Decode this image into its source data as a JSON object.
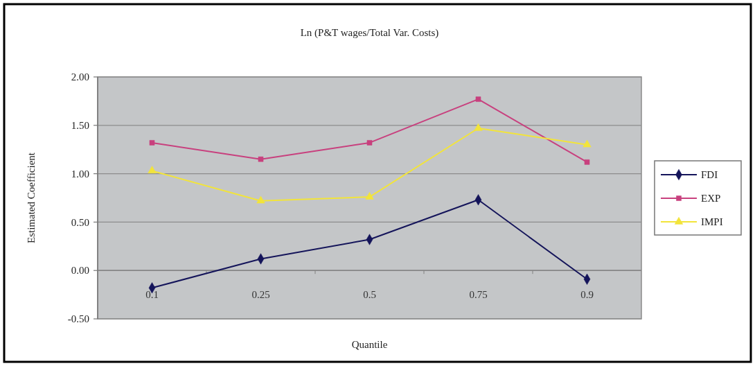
{
  "chart_data": {
    "type": "line",
    "title": "Ln (P&T wages/Total Var. Costs)",
    "xlabel": "Quantile",
    "ylabel": "Estimated Coefficient",
    "categories": [
      "0.1",
      "0.25",
      "0.5",
      "0.75",
      "0.9"
    ],
    "series": [
      {
        "name": "FDI",
        "color": "#14145a",
        "marker": "diamond",
        "values": [
          -0.18,
          0.12,
          0.32,
          0.73,
          -0.09
        ]
      },
      {
        "name": "EXP",
        "color": "#c8407e",
        "marker": "square",
        "values": [
          1.32,
          1.15,
          1.32,
          1.77,
          1.12
        ]
      },
      {
        "name": "IMPI",
        "color": "#f2e43a",
        "marker": "triangle",
        "values": [
          1.03,
          0.72,
          0.76,
          1.47,
          1.3
        ]
      }
    ],
    "ylim": [
      -0.5,
      2
    ],
    "yticks": [
      {
        "value": -0.5,
        "label": "-0.50"
      },
      {
        "value": 0,
        "label": "0.00"
      },
      {
        "value": 0.5,
        "label": "0.50"
      },
      {
        "value": 1,
        "label": "1.00"
      },
      {
        "value": 1.5,
        "label": "1.50"
      },
      {
        "value": 2,
        "label": "2.00"
      }
    ],
    "grid": "y",
    "legend": "right",
    "line_style": "solid"
  }
}
